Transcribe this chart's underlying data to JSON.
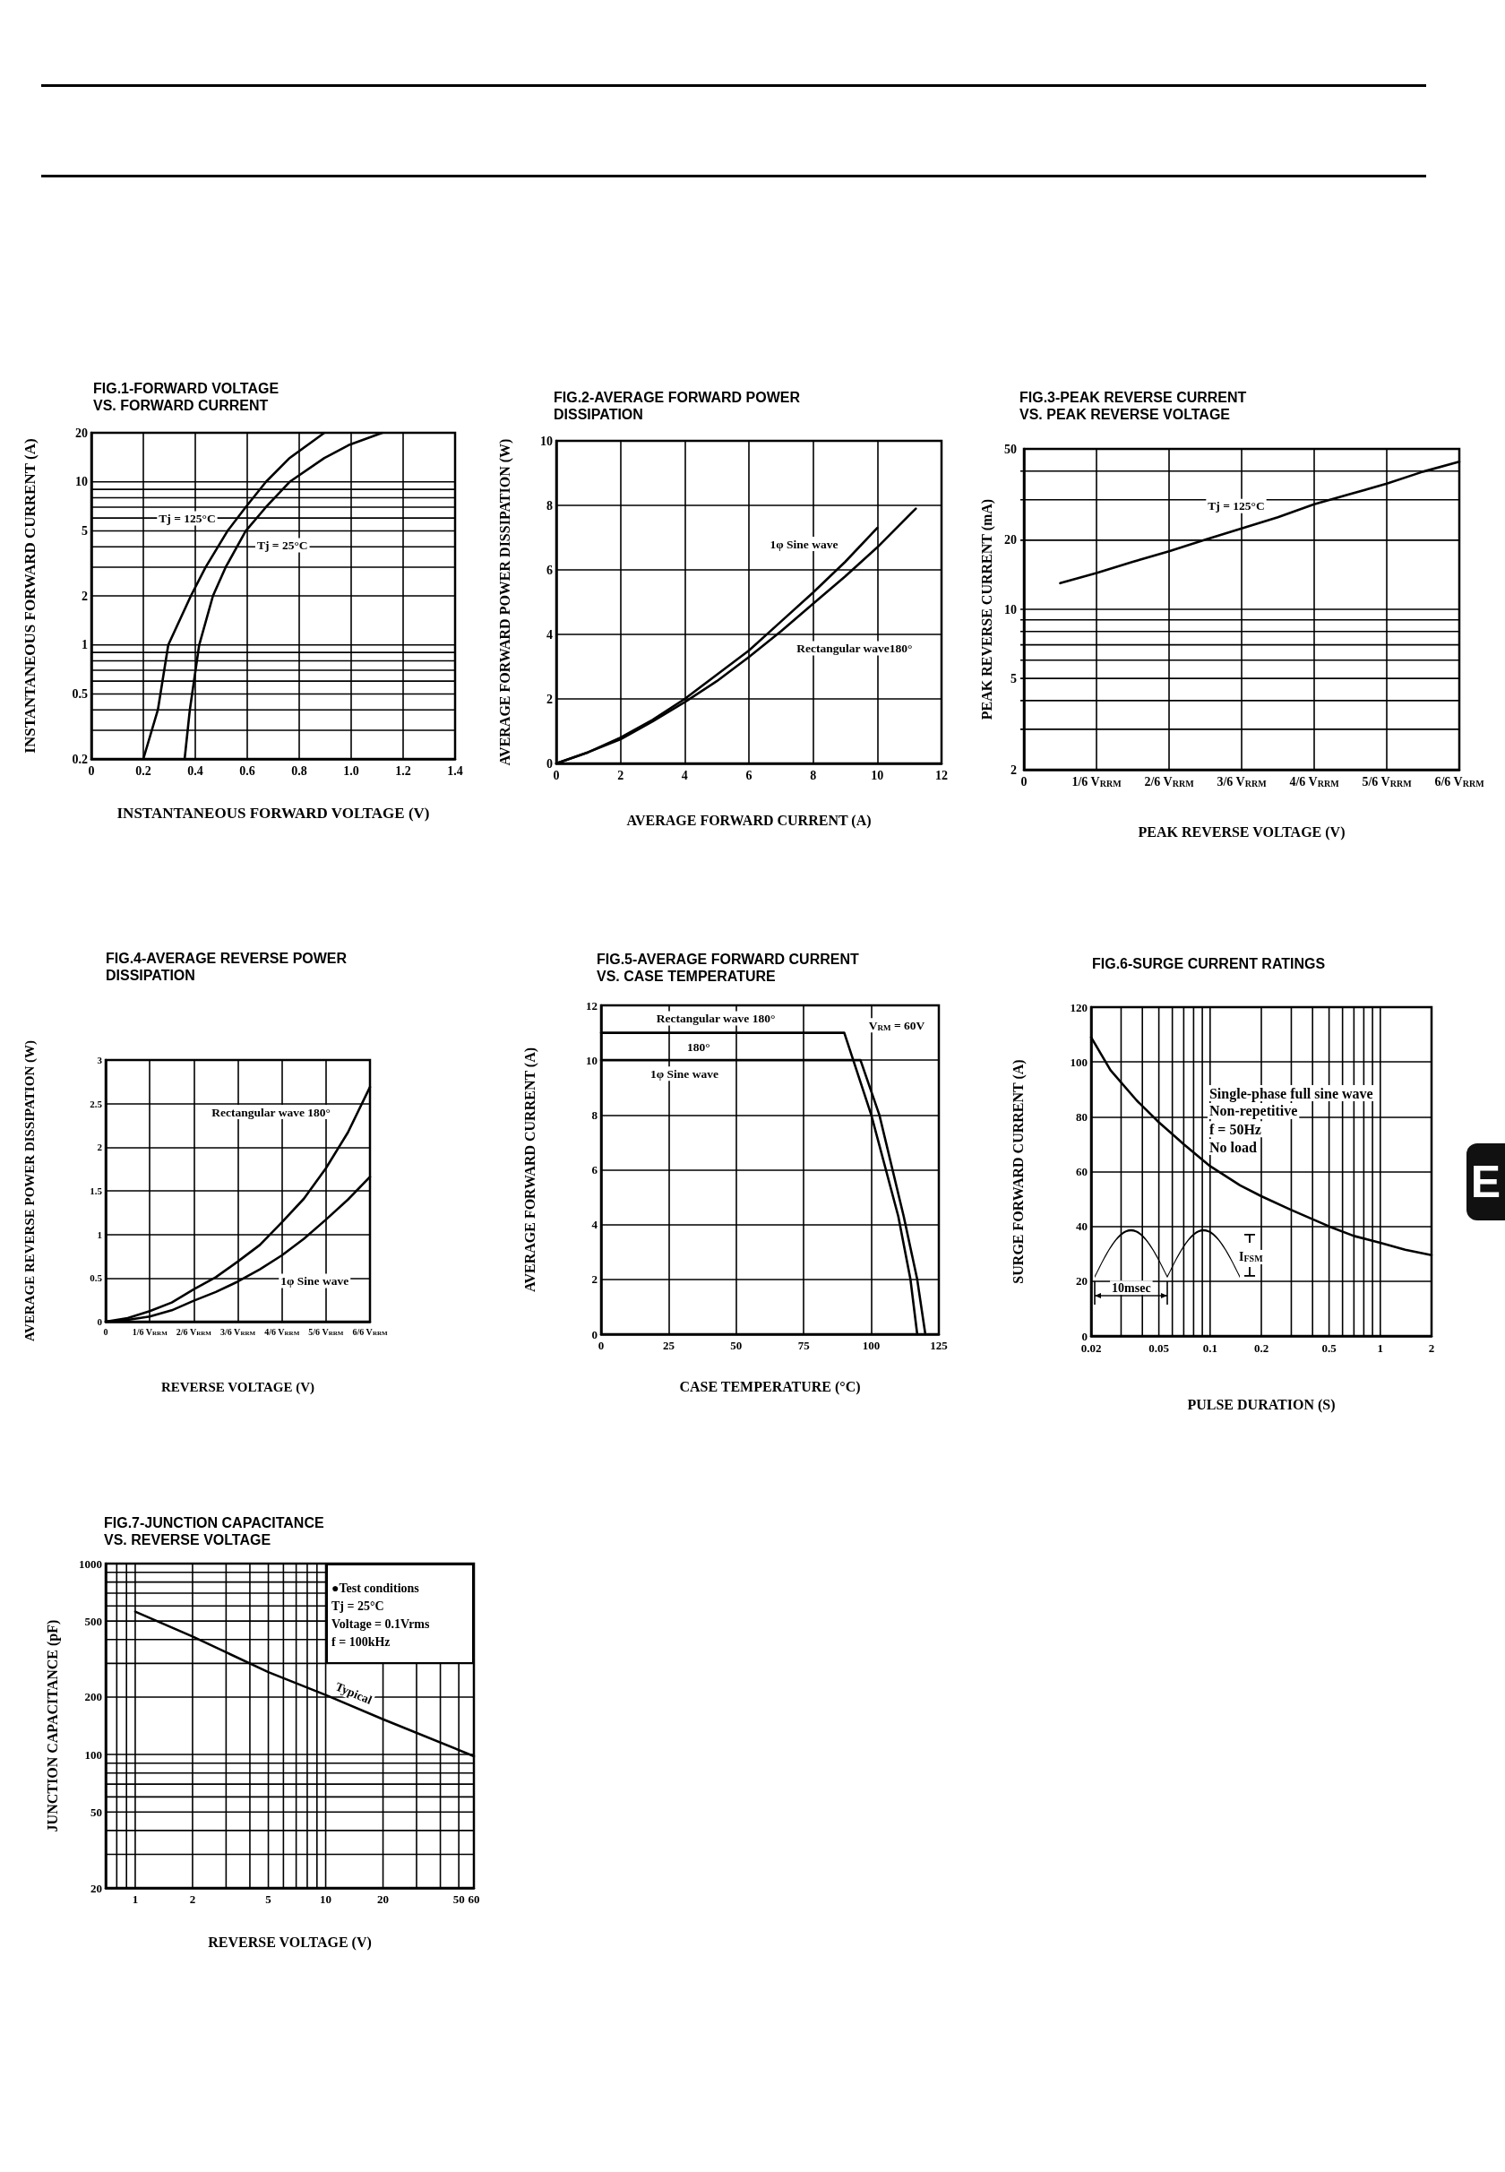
{
  "chart_data": [
    {
      "type": "line",
      "title": "FIG.1-FORWARD VOLTAGE\nVS. FORWARD CURRENT",
      "xlabel": "INSTANTANEOUS FORWARD VOLTAGE (V)",
      "ylabel": "INSTANTANEOUS FORWARD CURRENT (A)",
      "log": "y",
      "xlim": [
        0,
        1.4
      ],
      "xticks": [
        0,
        0.2,
        0.4,
        0.6,
        0.8,
        {
          "value": 1,
          "label": "1.0"
        },
        1.2,
        1.4
      ],
      "ylim": [
        0.2,
        20
      ],
      "yticks": [
        0.2,
        0.5,
        1,
        2,
        5,
        10,
        20
      ],
      "grid": true,
      "marker": "none",
      "series": [
        {
          "name": "Tj = 125°C",
          "color": "#000000",
          "x": [
            0.2,
            0.256,
            0.296,
            0.383,
            0.44,
            0.524,
            0.594,
            0.672,
            0.763,
            0.897
          ],
          "values": [
            0.2,
            0.4,
            1,
            2,
            3,
            5,
            7,
            10,
            14,
            20
          ]
        },
        {
          "name": "Tj = 25°C",
          "color": "#000000",
          "x": [
            0.359,
            0.379,
            0.415,
            0.468,
            0.517,
            0.594,
            0.672,
            0.763,
            0.897,
            0.99,
            1.12
          ],
          "values": [
            0.2,
            0.4,
            1,
            2,
            3,
            5,
            7,
            10,
            14,
            16.8,
            20
          ]
        }
      ]
    },
    {
      "type": "line",
      "title": "FIG.2-AVERAGE FORWARD POWER\nDISSIPATION",
      "xlabel": "AVERAGE FORWARD CURRENT (A)",
      "ylabel": "AVERAGE FORWARD POWER DISSIPATION (W)",
      "xlim": [
        0,
        12
      ],
      "xticks": [
        0,
        2,
        4,
        6,
        8,
        10,
        12
      ],
      "ylim": [
        0,
        10
      ],
      "yticks": [
        0,
        2,
        4,
        6,
        8,
        10
      ],
      "grid": true,
      "marker": "none",
      "series": [
        {
          "name": "1φ Sine wave",
          "color": "#000000",
          "x": [
            0,
            1,
            2,
            3,
            4,
            5,
            6,
            7,
            8,
            9,
            10
          ],
          "values": [
            0,
            0.35,
            0.8,
            1.35,
            2,
            2.75,
            3.5,
            4.4,
            5.3,
            6.25,
            7.3
          ]
        },
        {
          "name": "Rectangular wave180°",
          "color": "#000000",
          "x": [
            0,
            1,
            2,
            3,
            4,
            5,
            6,
            7,
            8,
            9,
            10,
            11.2
          ],
          "values": [
            0,
            0.35,
            0.75,
            1.3,
            1.9,
            2.55,
            3.3,
            4.1,
            4.95,
            5.8,
            6.7,
            7.9
          ]
        }
      ]
    },
    {
      "type": "line",
      "title": "FIG.3-PEAK REVERSE CURRENT\nVS. PEAK REVERSE VOLTAGE",
      "xlabel": "PEAK REVERSE VOLTAGE (V)",
      "ylabel": "PEAK REVERSE CURRENT (mA)",
      "log": "y",
      "categories": [
        "0",
        null,
        "1/6 V$_{RRM}$",
        null,
        "2/6 V$_{RRM}$",
        null,
        "3/6 V$_{RRM}$",
        null,
        "4/6 V$_{RRM}$",
        null,
        "5/6 V$_{RRM}$",
        null,
        "6/6 V$_{RRM}$"
      ],
      "ylim": [
        2,
        50
      ],
      "yticks": [
        2,
        5,
        10,
        20,
        50
      ],
      "grid": true,
      "marker": "none",
      "series": [
        {
          "name": "Tj = 125°C",
          "color": "#000000",
          "values": [
            null,
            13,
            14.4,
            16.1,
            17.9,
            20.1,
            22.5,
            25.2,
            28.7,
            31.8,
            35.3,
            39.8,
            44
          ]
        }
      ]
    },
    {
      "type": "line",
      "title": "FIG.4-AVERAGE REVERSE POWER\nDISSIPATION",
      "xlabel": "REVERSE VOLTAGE (V)",
      "ylabel": "AVERAGE REVERSE POWER DISSIPATION (W)",
      "categories": [
        "0",
        null,
        "1/6 V$_{RRM}$",
        null,
        "2/6 V$_{RRM}$",
        null,
        "3/6 V$_{RRM}$",
        null,
        "4/6 V$_{RRM}$",
        null,
        "5/6 V$_{RRM}$",
        null,
        "6/6 V$_{RRM}$"
      ],
      "ylim": [
        0,
        3
      ],
      "yticks": [
        0,
        0.5,
        1,
        1.5,
        2,
        2.5,
        3
      ],
      "grid": true,
      "marker": "none",
      "series": [
        {
          "name": "Rectangular wave 180°",
          "color": "#000000",
          "values": [
            0,
            0.04,
            0.12,
            0.22,
            0.37,
            0.51,
            0.69,
            0.88,
            1.14,
            1.41,
            1.76,
            2.17,
            2.69
          ]
        },
        {
          "name": "1φ Sine wave",
          "color": "#000000",
          "values": [
            0,
            0.02,
            0.06,
            0.13,
            0.24,
            0.34,
            0.46,
            0.6,
            0.76,
            0.95,
            1.17,
            1.4,
            1.66
          ]
        }
      ]
    },
    {
      "type": "line",
      "title": "FIG.5-AVERAGE FORWARD CURRENT\nVS. CASE TEMPERATURE",
      "xlabel": "CASE TEMPERATURE (°C)",
      "ylabel": "AVERAGE FORWARD CURRENT (A)",
      "xlim": [
        0,
        125
      ],
      "xticks": [
        0,
        25,
        50,
        75,
        100,
        125
      ],
      "ylim": [
        0,
        12
      ],
      "yticks": [
        0,
        2,
        4,
        6,
        8,
        10,
        12
      ],
      "grid": true,
      "marker": "none",
      "annotations": [
        "V$_{RM}$ = 60V",
        "180°"
      ],
      "series": [
        {
          "name": "Rectangular wave 180°",
          "color": "#000000",
          "x": [
            0,
            90,
            100,
            110,
            114.5,
            117
          ],
          "values": [
            11,
            11,
            8,
            4.3,
            2,
            0
          ]
        },
        {
          "name": "1φ Sine wave",
          "color": "#000000",
          "x": [
            0,
            96,
            103,
            112,
            117,
            120
          ],
          "values": [
            10,
            10,
            8,
            4.3,
            2,
            0
          ]
        }
      ]
    },
    {
      "type": "line",
      "title": "FIG.6-SURGE CURRENT RATINGS",
      "xlabel": "PULSE DURATION (S)",
      "ylabel": "SURGE FORWARD CURRENT (A)",
      "log": "x",
      "xlim": [
        0.02,
        2
      ],
      "xticks": [
        0.02,
        0.05,
        0.1,
        0.2,
        0.5,
        1,
        2
      ],
      "ylim": [
        0,
        120
      ],
      "yticks": [
        0,
        20,
        40,
        60,
        80,
        100,
        120
      ],
      "grid": true,
      "marker": "none",
      "annotations": [
        "Single-phase full sine wave",
        "Non-repetitive",
        "f = 50Hz",
        "No load",
        "10msec",
        "I$_{FSM}$"
      ],
      "series": [
        {
          "color": "#000000",
          "x": [
            0.02,
            0.026,
            0.037,
            0.05,
            0.07,
            0.1,
            0.15,
            0.2,
            0.3,
            0.5,
            0.7,
            1,
            1.4,
            2
          ],
          "values": [
            109,
            97,
            86,
            78,
            70,
            62,
            55,
            51,
            46,
            40,
            36.5,
            34,
            31.5,
            29.5
          ]
        }
      ]
    },
    {
      "type": "line",
      "title": "FIG.7-JUNCTION CAPACITANCE\nVS. REVERSE VOLTAGE",
      "xlabel": "REVERSE VOLTAGE (V)",
      "ylabel": "JUNCTION CAPACITANCE (pF)",
      "log": "xy",
      "xlim": [
        0.7,
        60
      ],
      "xticks": [
        1,
        2,
        5,
        10,
        20,
        50,
        60
      ],
      "ylim": [
        20,
        1000
      ],
      "yticks": [
        20,
        50,
        100,
        200,
        500,
        1000
      ],
      "grid": true,
      "marker": "none",
      "annotations": [
        "●Test conditions",
        "Tj = 25°C",
        "Voltage = 0.1Vrms",
        "f = 100kHz"
      ],
      "series": [
        {
          "name": "Typical",
          "color": "#000000",
          "x": [
            1,
            2,
            5,
            10,
            20,
            60
          ],
          "values": [
            560,
            415,
            270,
            205,
            153,
            98
          ]
        }
      ]
    },
    {
      "type": "other",
      "annotations": [
        "E"
      ]
    }
  ]
}
